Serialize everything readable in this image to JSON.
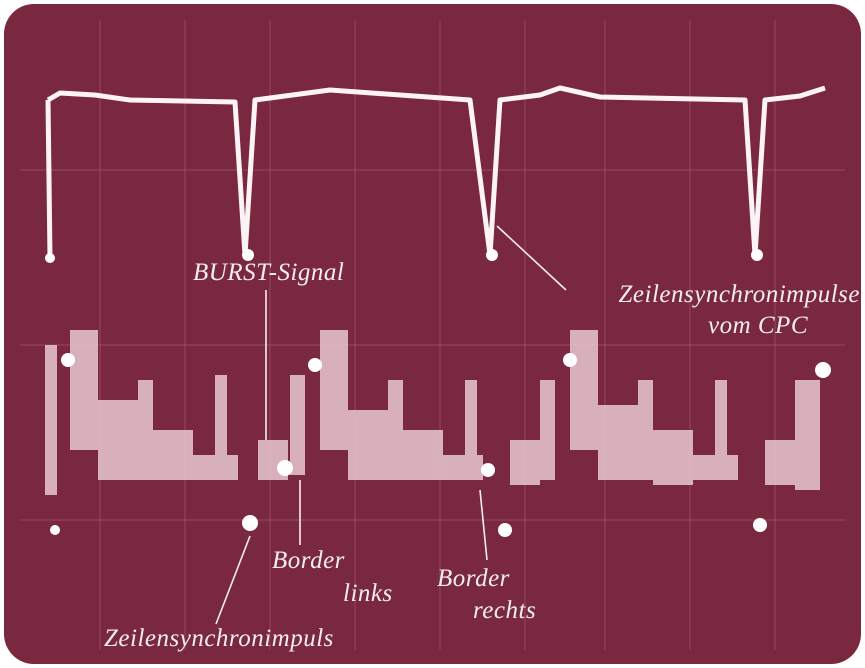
{
  "labels": {
    "burst_signal": "BURST-Signal",
    "sync_pulses_cpc": [
      "Zeilensynchronimpulse",
      "vom CPC"
    ],
    "border_left": [
      "Border",
      "links"
    ],
    "border_right": [
      "Border",
      "rechts"
    ],
    "sync_pulse": "Zeilensynchronimpuls"
  }
}
